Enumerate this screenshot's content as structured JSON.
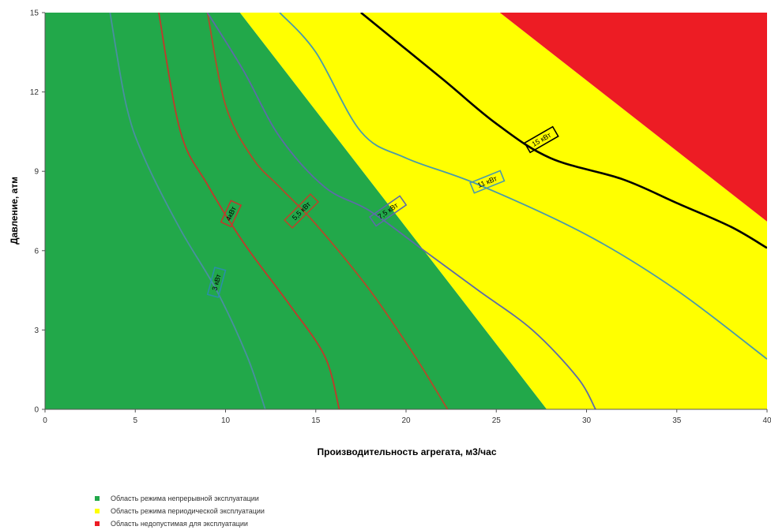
{
  "chart_data": {
    "type": "area",
    "title": "",
    "xlabel": "Производительность агрегата, м3/час",
    "ylabel": "Давление, атм",
    "xlim": [
      0,
      40
    ],
    "ylim": [
      0,
      15
    ],
    "x_ticks": [
      0,
      5,
      10,
      15,
      20,
      25,
      30,
      35,
      40
    ],
    "y_ticks": [
      0,
      3,
      6,
      9,
      12,
      15
    ],
    "grid": false,
    "regions": [
      {
        "name": "Область режима непрерывной эксплуатации",
        "color": "#22a84a",
        "polygon": [
          [
            0,
            0
          ],
          [
            27.8,
            0
          ],
          [
            10.8,
            15
          ],
          [
            0,
            15
          ]
        ]
      },
      {
        "name": "Область режима периодической эксплуатации",
        "color": "#ffff00",
        "polygon": [
          [
            27.8,
            0
          ],
          [
            40,
            0
          ],
          [
            40,
            7.1
          ],
          [
            25.2,
            15
          ],
          [
            10.8,
            15
          ]
        ]
      },
      {
        "name": "Область недопустимая для эксплуатации",
        "color": "#ed1c24",
        "polygon": [
          [
            25.2,
            15
          ],
          [
            40,
            15
          ],
          [
            40,
            7.1
          ]
        ]
      }
    ],
    "series": [
      {
        "name": "3 кВт",
        "color": "#4a8fa0",
        "points": [
          [
            3.6,
            15
          ],
          [
            4.5,
            11.5
          ],
          [
            5.5,
            9.5
          ],
          [
            7.5,
            6.8
          ],
          [
            9.5,
            4.5
          ],
          [
            11.2,
            2
          ],
          [
            12.2,
            0
          ]
        ]
      },
      {
        "name": "4кВт",
        "color": "#c0392b",
        "points": [
          [
            6.3,
            15
          ],
          [
            7.5,
            10.5
          ],
          [
            9,
            8.5
          ],
          [
            11,
            6.3
          ],
          [
            13.5,
            4
          ],
          [
            15.5,
            2
          ],
          [
            16.3,
            0
          ]
        ]
      },
      {
        "name": "5,5 кВт",
        "color": "#b34a2a",
        "points": [
          [
            9,
            15
          ],
          [
            10,
            11.5
          ],
          [
            11.5,
            9.5
          ],
          [
            13,
            8.4
          ],
          [
            15,
            7
          ],
          [
            18,
            4.5
          ],
          [
            20.5,
            2
          ],
          [
            22.3,
            0
          ]
        ]
      },
      {
        "name": "7,5 кВт",
        "color": "#5d6ba8",
        "points": [
          [
            9,
            15
          ],
          [
            11,
            12.8
          ],
          [
            13,
            10.3
          ],
          [
            15.5,
            8.4
          ],
          [
            18,
            7.5
          ],
          [
            21,
            6
          ],
          [
            24,
            4.5
          ],
          [
            27,
            3
          ],
          [
            29.5,
            1.2
          ],
          [
            30.5,
            0
          ]
        ]
      },
      {
        "name": "11 кВт",
        "color": "#4a9aaa",
        "points": [
          [
            13,
            15
          ],
          [
            15,
            13.5
          ],
          [
            17.5,
            10.5
          ],
          [
            20,
            9.5
          ],
          [
            24,
            8.5
          ],
          [
            30,
            6.6
          ],
          [
            35,
            4.5
          ],
          [
            40,
            1.9
          ]
        ]
      },
      {
        "name": "15 кВт",
        "color": "#000000",
        "points": [
          [
            17.5,
            15
          ],
          [
            22,
            12.5
          ],
          [
            25,
            10.8
          ],
          [
            28,
            9.5
          ],
          [
            32,
            8.7
          ],
          [
            35,
            7.8
          ],
          [
            38,
            6.9
          ],
          [
            40,
            6.1
          ]
        ]
      }
    ],
    "curve_labels": [
      {
        "text": "3 кВт",
        "x": 9.5,
        "y": 4.8,
        "angle": -75,
        "color": "#2a8fa8"
      },
      {
        "text": "4кВт",
        "x": 10.3,
        "y": 7.4,
        "angle": -65,
        "color": "#c0392b"
      },
      {
        "text": "5,5 кВт",
        "x": 14.2,
        "y": 7.5,
        "angle": -45,
        "color": "#b34a2a"
      },
      {
        "text": "7,5 кВт",
        "x": 19,
        "y": 7.5,
        "angle": -35,
        "color": "#5d6ba8"
      },
      {
        "text": "11 кВт",
        "x": 24.5,
        "y": 8.6,
        "angle": -22,
        "color": "#4a9aaa"
      },
      {
        "text": "15 кВт",
        "x": 27.5,
        "y": 10.2,
        "angle": -30,
        "color": "#000000"
      }
    ],
    "legend_position": "bottom-left",
    "legend": [
      {
        "text": "Область режима непрерывной эксплуатации",
        "color": "#22a84a"
      },
      {
        "text": "Область режима периодической эксплуатации",
        "color": "#ffff00"
      },
      {
        "text": "Область недопустимая для эксплуатации",
        "color": "#ed1c24"
      }
    ]
  }
}
